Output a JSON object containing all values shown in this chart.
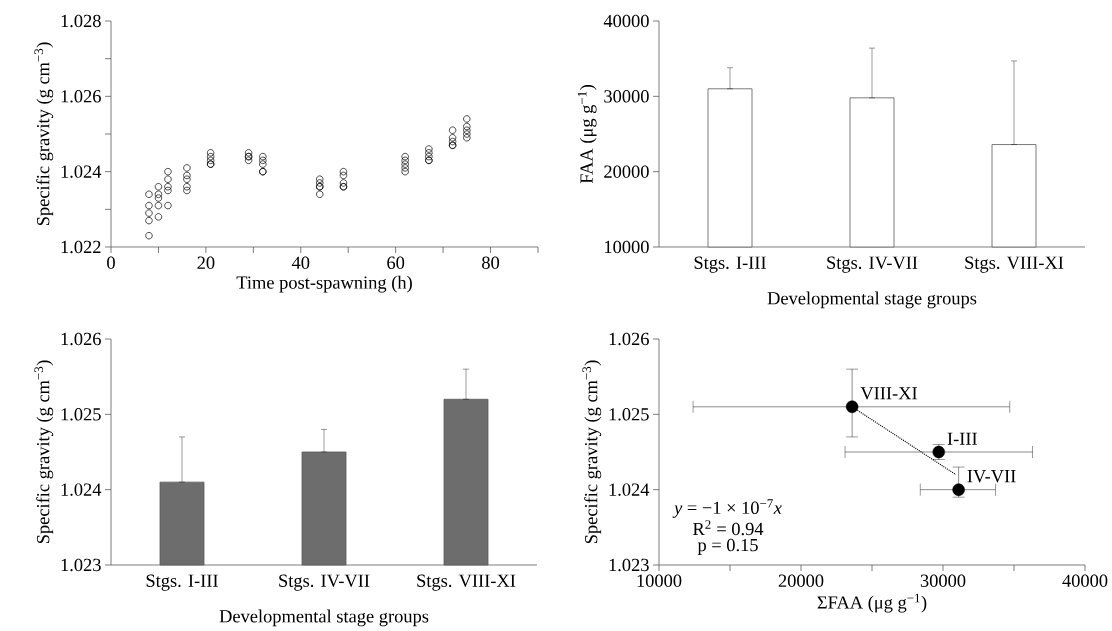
{
  "chart_data": [
    {
      "type": "scatter",
      "xlabel": "Time post-spawning (h)",
      "ylabel": "Specific gravity (g cm$^{−3}$)",
      "color": "#000000",
      "marker": "circle",
      "x": [
        8,
        8,
        8,
        8,
        8,
        10,
        10,
        10,
        10,
        10,
        12,
        12,
        12,
        12,
        12,
        16,
        16,
        16,
        16,
        16,
        21,
        21,
        21,
        21,
        21,
        29,
        29,
        29,
        29,
        32,
        32,
        32,
        32,
        32,
        44,
        44,
        44,
        44,
        44,
        49,
        49,
        49,
        49,
        49,
        62,
        62,
        62,
        62,
        62,
        67,
        67,
        67,
        67,
        67,
        72,
        72,
        72,
        72,
        72,
        75,
        75,
        75,
        75,
        75
      ],
      "values": [
        1.0234,
        1.0231,
        1.0229,
        1.0227,
        1.0223,
        1.0236,
        1.0234,
        1.0233,
        1.0231,
        1.0228,
        1.024,
        1.0238,
        1.0236,
        1.0235,
        1.0231,
        1.0241,
        1.0239,
        1.0238,
        1.0236,
        1.0235,
        1.0245,
        1.0244,
        1.0243,
        1.0242,
        1.0242,
        1.0245,
        1.0244,
        1.0244,
        1.0243,
        1.0244,
        1.0243,
        1.0242,
        1.024,
        1.024,
        1.0238,
        1.0237,
        1.0236,
        1.0236,
        1.0234,
        1.024,
        1.0239,
        1.0237,
        1.0236,
        1.0236,
        1.0244,
        1.0243,
        1.0242,
        1.0241,
        1.024,
        1.0246,
        1.0245,
        1.0244,
        1.0243,
        1.0243,
        1.0251,
        1.0249,
        1.0248,
        1.0247,
        1.0247,
        1.0254,
        1.0252,
        1.0251,
        1.025,
        1.0249
      ],
      "xlim": [
        0,
        90
      ],
      "xticks": [
        0,
        {
          "value": 10,
          "label": null
        },
        20,
        {
          "value": 30,
          "label": null
        },
        40,
        {
          "value": 50,
          "label": null
        },
        60,
        {
          "value": 70,
          "label": null
        },
        80,
        {
          "value": 90,
          "label": null
        }
      ],
      "ylim": [
        1.022,
        1.028
      ],
      "yticks": [
        1.022,
        {
          "value": 1.023,
          "label": null
        },
        1.024,
        {
          "value": 1.025,
          "label": null
        },
        1.026,
        {
          "value": 1.027,
          "label": null
        },
        1.028
      ]
    },
    {
      "type": "bar",
      "xlabel": "Developmental stage groups",
      "ylabel": "FAA (μg g$^{−1}$)",
      "categories": [
        "Stgs. I-III",
        "Stgs. IV-VII",
        "Stgs. VIII-XI"
      ],
      "color": "#ffffff",
      "values": [
        31000,
        29800,
        23600
      ],
      "errors": [
        [
          31000,
          33800
        ],
        [
          29800,
          36400
        ],
        [
          23600,
          34700
        ]
      ],
      "ylim": [
        10000,
        40000
      ],
      "yticks": [
        10000,
        20000,
        30000,
        40000
      ]
    },
    {
      "type": "bar",
      "xlabel": "Developmental stage groups",
      "ylabel": "Specific gravity (g cm$^{−3}$)",
      "categories": [
        "Stgs. I-III",
        "Stgs. IV-VII",
        "Stgs. VIII-XI"
      ],
      "color": "#6d6d6d",
      "values": [
        1.0241,
        1.0245,
        1.0252
      ],
      "errors": [
        [
          1.0241,
          1.0247
        ],
        [
          1.0245,
          1.0248
        ],
        [
          1.0252,
          1.0256
        ]
      ],
      "ylim": [
        1.023,
        1.026
      ],
      "yticks": [
        1.023,
        1.024,
        1.025,
        1.026
      ]
    },
    {
      "type": "scatter",
      "xlabel": "ΣFAA (μg g$^{−1}$)",
      "ylabel": "Specific gravity (g cm$^{−3}$)",
      "series": [
        {
          "type": "scatter",
          "color": "#000000",
          "marker": "circle",
          "x": [
            23600,
            29700,
            31100
          ],
          "values": [
            1.0251,
            1.0245,
            1.024
          ],
          "xerrors": [
            [
              12400,
              34700
            ],
            [
              23100,
              36300
            ],
            [
              28400,
              33700
            ]
          ],
          "errors": [
            [
              1.0247,
              1.0256
            ],
            [
              1.0244,
              1.0246
            ],
            [
              1.0239,
              1.0243
            ]
          ]
        },
        {
          "type": "line",
          "color": "#000000",
          "marker": "none",
          "line_style": "dotted",
          "x": [
            23600,
            30900
          ],
          "values": [
            1.0251,
            1.0242
          ]
        }
      ],
      "annotations": [
        {
          "text": "VIII-XI",
          "x": 23600,
          "y": 1.0251
        },
        {
          "text": "I-III",
          "x": 29700,
          "y": 1.0245
        },
        {
          "text": "IV-VII",
          "x": 31100,
          "y": 1.024
        },
        "*y* = −1 × 10$^{−7}$*x*",
        "R$^{2}$ = 0.94",
        "p = 0.15"
      ],
      "xlim": [
        10000,
        40000
      ],
      "xticks": [
        10000,
        {
          "value": 15000,
          "label": null
        },
        20000,
        {
          "value": 25000,
          "label": null
        },
        30000,
        {
          "value": 35000,
          "label": null
        },
        40000
      ],
      "ylim": [
        1.023,
        1.026
      ],
      "yticks": [
        1.023,
        1.024,
        1.025,
        1.026
      ]
    }
  ]
}
